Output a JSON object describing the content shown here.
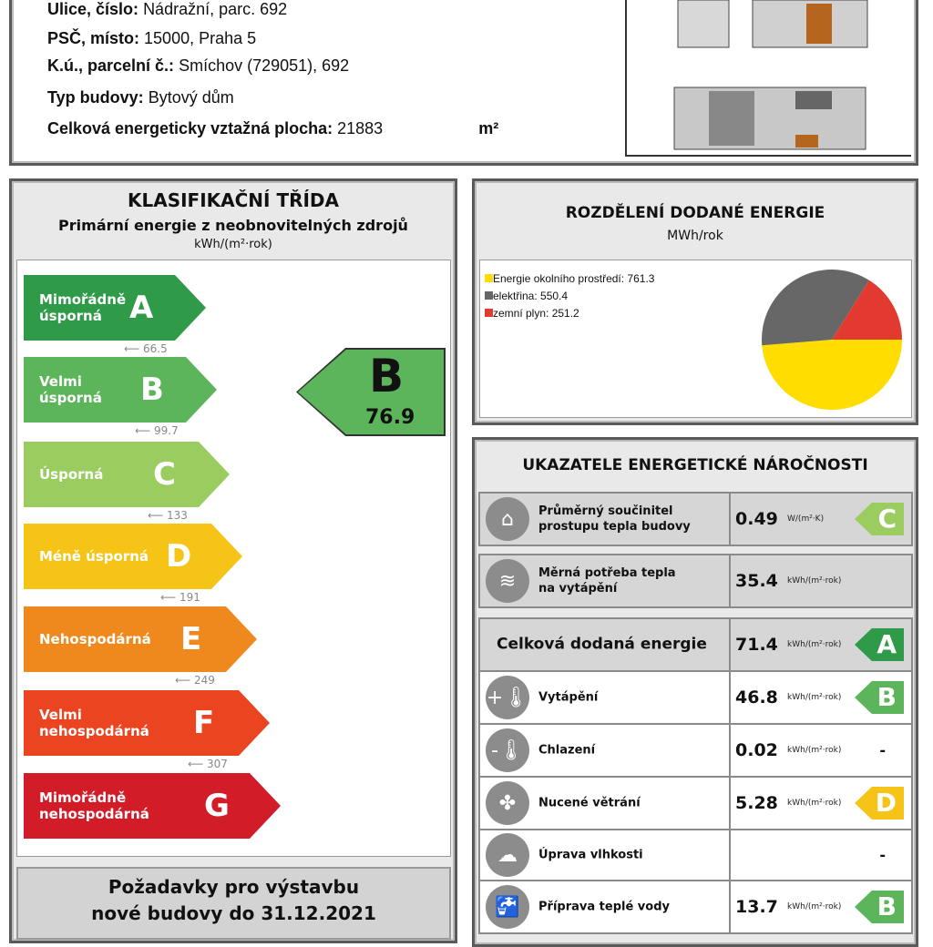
{
  "building": {
    "street_label": "Ulice, číslo:",
    "street": "Nádražní, parc. 692",
    "zip_label": "PSČ, místo:",
    "zip": "15000, Praha 5",
    "cadastre_label": "K.ú., parcelní č.:",
    "cadastre": "Smíchov (729051), 692",
    "type_label": "Typ budovy:",
    "type": "Bytový dům",
    "area_label": "Celková energeticky vztažná plocha:",
    "area": "21883",
    "area_unit": "m²"
  },
  "classification": {
    "title": "KLASIFIKAČNÍ TŘÍDA",
    "subtitle": "Primární energie z neobnovitelných zdrojů",
    "unit": "kWh/(m²·rok)",
    "classes": [
      {
        "letter": "A",
        "label": "Mimořádně\núsporná",
        "color": "#2f9a48",
        "threshold": "66.5"
      },
      {
        "letter": "B",
        "label": "Velmi\núsporná",
        "color": "#5cb55b",
        "threshold": "99.7"
      },
      {
        "letter": "C",
        "label": "Úsporná",
        "color": "#9acc5f",
        "threshold": "133"
      },
      {
        "letter": "D",
        "label": "Méně úsporná",
        "color": "#f5c417",
        "threshold": "191"
      },
      {
        "letter": "E",
        "label": "Nehospodárná",
        "color": "#f0891d",
        "threshold": "249"
      },
      {
        "letter": "F",
        "label": "Velmi\nnehospodárná",
        "color": "#ea4520",
        "threshold": "307"
      },
      {
        "letter": "G",
        "label": "Mimořádně\nnehospodárná",
        "color": "#d21c28",
        "threshold": ""
      }
    ],
    "result": {
      "letter": "B",
      "value": "76.9",
      "color": "#5cb55b"
    },
    "requirements_title": "Požadavky pro výstavbu\nnové budovy do 31.12.2021"
  },
  "distribution": {
    "title": "ROZDĚLENÍ DODANÉ ENERGIE",
    "unit": "MWh/rok",
    "chart_data": {
      "type": "pie",
      "series": [
        {
          "name": "Energie okolního prostředí",
          "value": 761.3,
          "label": "Energie okolního prostředí: 761.3",
          "color": "#ffdd00"
        },
        {
          "name": "elektřina",
          "value": 550.4,
          "label": "elektřina: 550.4",
          "color": "#676767"
        },
        {
          "name": "zemní plyn",
          "value": 251.2,
          "label": "zemní plyn: 251.2",
          "color": "#e23a30"
        }
      ]
    }
  },
  "indicators": {
    "title": "UKAZATELE ENERGETICKÉ NÁROČNOSTI",
    "rows": [
      {
        "icon": "house-icon",
        "glyph": "⌂",
        "name": "Průměrný součinitel\nprostupu tepla budovy",
        "value": "0.49",
        "unit": "W/(m²·K)",
        "class": "C",
        "color": "#9acc5f"
      },
      {
        "icon": "heat-demand-icon",
        "glyph": "≋",
        "name": "Měrná potřeba tepla\nna vytápění",
        "value": "35.4",
        "unit": "kWh/(m²·rok)",
        "class": "",
        "color": ""
      },
      {
        "name": "Celková dodaná energie",
        "value": "71.4",
        "unit": "kWh/(m²·rok)",
        "class": "A",
        "color": "#2f9a48"
      },
      {
        "icon": "heating-thermometer-icon",
        "glyph": "+🌡",
        "name": "Vytápění",
        "value": "46.8",
        "unit": "kWh/(m²·rok)",
        "class": "B",
        "color": "#5cb55b"
      },
      {
        "icon": "cooling-thermometer-icon",
        "glyph": "-🌡",
        "name": "Chlazení",
        "value": "0.02",
        "unit": "kWh/(m²·rok)",
        "class": "-",
        "color": ""
      },
      {
        "icon": "fan-icon",
        "glyph": "✤",
        "name": "Nucené větrání",
        "value": "5.28",
        "unit": "kWh/(m²·rok)",
        "class": "D",
        "color": "#f5c417"
      },
      {
        "icon": "humidity-icon",
        "glyph": "☁",
        "name": "Úprava vlhkosti",
        "value": "",
        "unit": "",
        "class": "-",
        "color": ""
      },
      {
        "icon": "faucet-icon",
        "glyph": "🚰",
        "name": "Příprava teplé vody",
        "value": "13.7",
        "unit": "kWh/(m²·rok)",
        "class": "B",
        "color": "#5cb55b"
      }
    ]
  }
}
